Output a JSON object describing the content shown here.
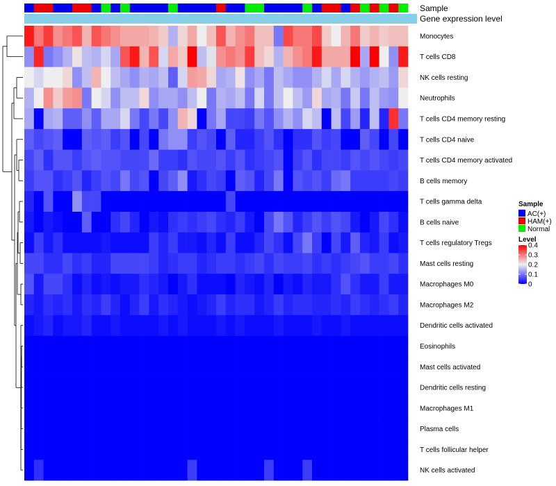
{
  "chart_data": {
    "type": "heatmap",
    "title": "",
    "annotation_tracks": [
      "Sample",
      "Gene expression level"
    ],
    "rows": [
      "Monocytes",
      "T cells CD8",
      "NK cells resting",
      "Neutrophils",
      "T cells CD4 memory resting",
      "T cells CD4 naive",
      "T cells CD4 memory activated",
      "B cells memory",
      "T cells gamma delta",
      "B cells naive",
      "T cells regulatory  Tregs",
      "Mast cells resting",
      "Macrophages M0",
      "Macrophages M2",
      "Dendritic cells activated",
      "Eosinophils",
      "Mast cells activated",
      "Dendritic cells resting",
      "Macrophages M1",
      "Plasma cells",
      "T cells follicular helper",
      "NK cells activated"
    ],
    "sample_groups": [
      "AC(+)",
      "HAM(+)",
      "HAM(+)",
      "AC(+)",
      "AC(+)",
      "HAM(+)",
      "HAM(+)",
      "AC(+)",
      "Normal",
      "AC(+)",
      "Normal",
      "AC(+)",
      "AC(+)",
      "AC(+)",
      "AC(+)",
      "Normal",
      "AC(+)",
      "AC(+)",
      "AC(+)",
      "AC(+)",
      "HAM(+)",
      "AC(+)",
      "AC(+)",
      "Normal",
      "Normal",
      "AC(+)",
      "AC(+)",
      "AC(+)",
      "AC(+)",
      "Normal",
      "AC(+)",
      "HAM(+)",
      "HAM(+)",
      "AC(+)",
      "HAM(+)",
      "Normal",
      "HAM(+)",
      "Normal",
      "HAM(+)",
      "Normal"
    ],
    "values": [
      [
        0.38,
        0.3,
        0.35,
        0.28,
        0.3,
        0.33,
        0.25,
        0.33,
        0.3,
        0.28,
        0.26,
        0.26,
        0.26,
        0.25,
        0.23,
        0.15,
        0.22,
        0.26,
        0.2,
        0.24,
        0.33,
        0.25,
        0.28,
        0.3,
        0.24,
        0.24,
        0.1,
        0.34,
        0.3,
        0.3,
        0.34,
        0.23,
        0.2,
        0.25,
        0.3,
        0.23,
        0.25,
        0.23,
        0.24,
        0.24
      ],
      [
        0.12,
        0.37,
        0.1,
        0.12,
        0.15,
        0.21,
        0.16,
        0.15,
        0.18,
        0.14,
        0.33,
        0.38,
        0.25,
        0.33,
        0.18,
        0.26,
        0.23,
        0.4,
        0.16,
        0.19,
        0.28,
        0.3,
        0.28,
        0.35,
        0.24,
        0.22,
        0.15,
        0.25,
        0.28,
        0.3,
        0.38,
        0.26,
        0.26,
        0.26,
        0.4,
        0.14,
        0.4,
        0.2,
        0.12,
        0.38
      ],
      [
        0.2,
        0.18,
        0.2,
        0.2,
        0.22,
        0.12,
        0.16,
        0.25,
        0.2,
        0.16,
        0.14,
        0.12,
        0.15,
        0.14,
        0.16,
        0.08,
        0.18,
        0.27,
        0.26,
        0.22,
        0.14,
        0.15,
        0.21,
        0.12,
        0.14,
        0.1,
        0.16,
        0.14,
        0.12,
        0.12,
        0.15,
        0.18,
        0.14,
        0.18,
        0.15,
        0.13,
        0.15,
        0.16,
        0.13,
        0.22
      ],
      [
        0.15,
        0.2,
        0.28,
        0.23,
        0.27,
        0.28,
        0.1,
        0.2,
        0.18,
        0.12,
        0.16,
        0.16,
        0.22,
        0.12,
        0.14,
        0.14,
        0.12,
        0.16,
        0.2,
        0.1,
        0.15,
        0.14,
        0.16,
        0.1,
        0.18,
        0.1,
        0.16,
        0.2,
        0.16,
        0.13,
        0.22,
        0.14,
        0.15,
        0.1,
        0.17,
        0.1,
        0.16,
        0.13,
        0.12,
        0.2
      ],
      [
        0.14,
        0.0,
        0.14,
        0.15,
        0.08,
        0.08,
        0.12,
        0.08,
        0.14,
        0.14,
        0.18,
        0.1,
        0.06,
        0.1,
        0.06,
        0.12,
        0.25,
        0.22,
        0.0,
        0.1,
        0.14,
        0.06,
        0.06,
        0.05,
        0.1,
        0.07,
        0.12,
        0.15,
        0.12,
        0.18,
        0.16,
        0.0,
        0.16,
        0.06,
        0.13,
        0.03,
        0.16,
        0.03,
        0.36,
        0.1
      ],
      [
        0.08,
        0.06,
        0.07,
        0.08,
        0.0,
        0.0,
        0.08,
        0.07,
        0.08,
        0.05,
        0.07,
        0.0,
        0.06,
        0.0,
        0.1,
        0.12,
        0.12,
        0.05,
        0.07,
        0.06,
        0.0,
        0.08,
        0.03,
        0.03,
        0.05,
        0.07,
        0.04,
        0.0,
        0.04,
        0.04,
        0.07,
        0.05,
        0.06,
        0.0,
        0.0,
        0.08,
        0.06,
        0.0,
        0.06,
        0.0
      ],
      [
        0.06,
        0.08,
        0.04,
        0.07,
        0.07,
        0.05,
        0.07,
        0.08,
        0.07,
        0.07,
        0.06,
        0.06,
        0.06,
        0.09,
        0.05,
        0.05,
        0.04,
        0.07,
        0.06,
        0.06,
        0.07,
        0.05,
        0.07,
        0.04,
        0.05,
        0.06,
        0.07,
        0.0,
        0.05,
        0.07,
        0.04,
        0.06,
        0.06,
        0.05,
        0.07,
        0.06,
        0.07,
        0.06,
        0.05,
        0.06
      ],
      [
        0.05,
        0.07,
        0.07,
        0.04,
        0.05,
        0.07,
        0.03,
        0.05,
        0.07,
        0.06,
        0.1,
        0.06,
        0.07,
        0.0,
        0.06,
        0.08,
        0.12,
        0.02,
        0.04,
        0.06,
        0.05,
        0.0,
        0.08,
        0.07,
        0.03,
        0.06,
        0.1,
        0.0,
        0.07,
        0.06,
        0.07,
        0.05,
        0.09,
        0.1,
        0.05,
        0.05,
        0.05,
        0.05,
        0.06,
        0.05
      ],
      [
        0.03,
        0.0,
        0.07,
        0.0,
        0.0,
        0.12,
        0.06,
        0.06,
        0.0,
        0.0,
        0.0,
        0.0,
        0.0,
        0.0,
        0.0,
        0.0,
        0.0,
        0.0,
        0.0,
        0.0,
        0.0,
        0.06,
        0.0,
        0.0,
        0.0,
        0.0,
        0.0,
        0.0,
        0.0,
        0.0,
        0.0,
        0.0,
        0.0,
        0.0,
        0.0,
        0.0,
        0.0,
        0.0,
        0.0,
        0.0
      ],
      [
        0.02,
        0.0,
        0.02,
        0.01,
        0.0,
        0.0,
        0.08,
        0.0,
        0.0,
        0.04,
        0.06,
        0.03,
        0.0,
        0.02,
        0.01,
        0.04,
        0.05,
        0.04,
        0.05,
        0.06,
        0.04,
        0.03,
        0.05,
        0.02,
        0.0,
        0.06,
        0.1,
        0.07,
        0.03,
        0.05,
        0.07,
        0.05,
        0.07,
        0.06,
        0.02,
        0.0,
        0.02,
        0.06,
        0.04,
        0.01
      ],
      [
        0.01,
        0.05,
        0.02,
        0.04,
        0.01,
        0.01,
        0.01,
        0.01,
        0.02,
        0.01,
        0.01,
        0.01,
        0.01,
        0.05,
        0.03,
        0.05,
        0.02,
        0.02,
        0.01,
        0.03,
        0.01,
        0.05,
        0.01,
        0.01,
        0.03,
        0.06,
        0.04,
        0.01,
        0.06,
        0.1,
        0.05,
        0.0,
        0.06,
        0.02,
        0.08,
        0.03,
        0.02,
        0.05,
        0.01,
        0.02
      ],
      [
        0.06,
        0.06,
        0.04,
        0.04,
        0.06,
        0.04,
        0.05,
        0.03,
        0.03,
        0.06,
        0.06,
        0.06,
        0.06,
        0.05,
        0.03,
        0.04,
        0.05,
        0.05,
        0.03,
        0.04,
        0.05,
        0.05,
        0.04,
        0.05,
        0.06,
        0.04,
        0.06,
        0.05,
        0.05,
        0.06,
        0.04,
        0.05,
        0.04,
        0.05,
        0.06,
        0.07,
        0.05,
        0.05,
        0.06,
        0.04
      ],
      [
        0.07,
        0.02,
        0.06,
        0.06,
        0.04,
        0.01,
        0.03,
        0.01,
        0.02,
        0.01,
        0.02,
        0.02,
        0.04,
        0.03,
        0.02,
        0.0,
        0.02,
        0.04,
        0.01,
        0.01,
        0.01,
        0.0,
        0.03,
        0.02,
        0.01,
        0.03,
        0.0,
        0.02,
        0.01,
        0.03,
        0.02,
        0.02,
        0.04,
        0.07,
        0.04,
        0.02,
        0.02,
        0.05,
        0.02,
        0.02
      ],
      [
        0.03,
        0.02,
        0.04,
        0.03,
        0.04,
        0.02,
        0.04,
        0.03,
        0.05,
        0.03,
        0.01,
        0.03,
        0.05,
        0.02,
        0.04,
        0.03,
        0.02,
        0.01,
        0.02,
        0.03,
        0.05,
        0.03,
        0.04,
        0.04,
        0.02,
        0.03,
        0.05,
        0.03,
        0.04,
        0.04,
        0.03,
        0.03,
        0.04,
        0.03,
        0.05,
        0.04,
        0.03,
        0.04,
        0.05,
        0.03
      ],
      [
        0.01,
        0.02,
        0.03,
        0.01,
        0.02,
        0.02,
        0.03,
        0.01,
        0.01,
        0.02,
        0.01,
        0.01,
        0.01,
        0.01,
        0.02,
        0.01,
        0.02,
        0.01,
        0.01,
        0.01,
        0.02,
        0.01,
        0.02,
        0.01,
        0.01,
        0.01,
        0.02,
        0.01,
        0.01,
        0.01,
        0.02,
        0.01,
        0.01,
        0.02,
        0.01,
        0.01,
        0.01,
        0.01,
        0.01,
        0.01
      ],
      [
        0,
        0,
        0,
        0,
        0,
        0,
        0,
        0,
        0,
        0,
        0,
        0,
        0,
        0,
        0,
        0,
        0,
        0,
        0,
        0,
        0,
        0,
        0,
        0,
        0,
        0,
        0,
        0,
        0,
        0,
        0,
        0,
        0,
        0,
        0,
        0,
        0,
        0,
        0,
        0
      ],
      [
        0,
        0,
        0,
        0,
        0,
        0,
        0,
        0,
        0,
        0,
        0,
        0,
        0,
        0,
        0,
        0,
        0,
        0,
        0,
        0,
        0,
        0,
        0,
        0,
        0,
        0,
        0,
        0,
        0,
        0,
        0,
        0,
        0,
        0,
        0,
        0,
        0,
        0,
        0,
        0
      ],
      [
        0,
        0,
        0,
        0,
        0,
        0,
        0,
        0,
        0,
        0,
        0,
        0,
        0,
        0,
        0,
        0,
        0,
        0,
        0,
        0,
        0,
        0,
        0,
        0,
        0,
        0,
        0,
        0,
        0,
        0,
        0,
        0,
        0,
        0,
        0,
        0,
        0,
        0,
        0,
        0
      ],
      [
        0,
        0,
        0,
        0,
        0,
        0,
        0,
        0,
        0,
        0,
        0,
        0,
        0,
        0,
        0,
        0,
        0,
        0,
        0,
        0,
        0,
        0,
        0,
        0,
        0,
        0,
        0,
        0,
        0,
        0,
        0,
        0,
        0,
        0,
        0,
        0,
        0,
        0,
        0,
        0
      ],
      [
        0,
        0,
        0,
        0,
        0,
        0,
        0,
        0,
        0,
        0,
        0,
        0,
        0,
        0,
        0,
        0,
        0,
        0,
        0,
        0,
        0,
        0,
        0,
        0,
        0,
        0,
        0,
        0,
        0,
        0,
        0,
        0,
        0,
        0,
        0,
        0,
        0,
        0,
        0,
        0
      ],
      [
        0,
        0,
        0,
        0,
        0,
        0,
        0,
        0,
        0,
        0,
        0,
        0,
        0,
        0,
        0,
        0,
        0,
        0,
        0,
        0,
        0,
        0,
        0,
        0,
        0,
        0,
        0,
        0,
        0,
        0,
        0,
        0,
        0,
        0,
        0,
        0,
        0,
        0,
        0,
        0
      ],
      [
        0.0,
        0.04,
        0.0,
        0.0,
        0.0,
        0.0,
        0.0,
        0.0,
        0.0,
        0.0,
        0.0,
        0.0,
        0.0,
        0.0,
        0.0,
        0.0,
        0.0,
        0.05,
        0.0,
        0.0,
        0.0,
        0.0,
        0.0,
        0.0,
        0.0,
        0.05,
        0.0,
        0.0,
        0.0,
        0.05,
        0.0,
        0.0,
        0.0,
        0.0,
        0.0,
        0.0,
        0.0,
        0.0,
        0.0,
        0.0
      ]
    ],
    "legend": {
      "sample_title": "Sample",
      "sample_entries": [
        {
          "label": "AC(+)",
          "color": "#0000ee"
        },
        {
          "label": "HAM(+)",
          "color": "#ee0000"
        },
        {
          "label": "Normal",
          "color": "#00ee00"
        }
      ],
      "level_title": "Level",
      "level_ticks": [
        "0.4",
        "0.3",
        "0.2",
        "0.1",
        "0"
      ],
      "level_range": [
        0,
        0.4
      ],
      "position": "right"
    },
    "colors": {
      "low": "#0000ff",
      "mid": "#eeeeee",
      "high": "#ff0000",
      "gene_track": "#87ceeb"
    }
  }
}
